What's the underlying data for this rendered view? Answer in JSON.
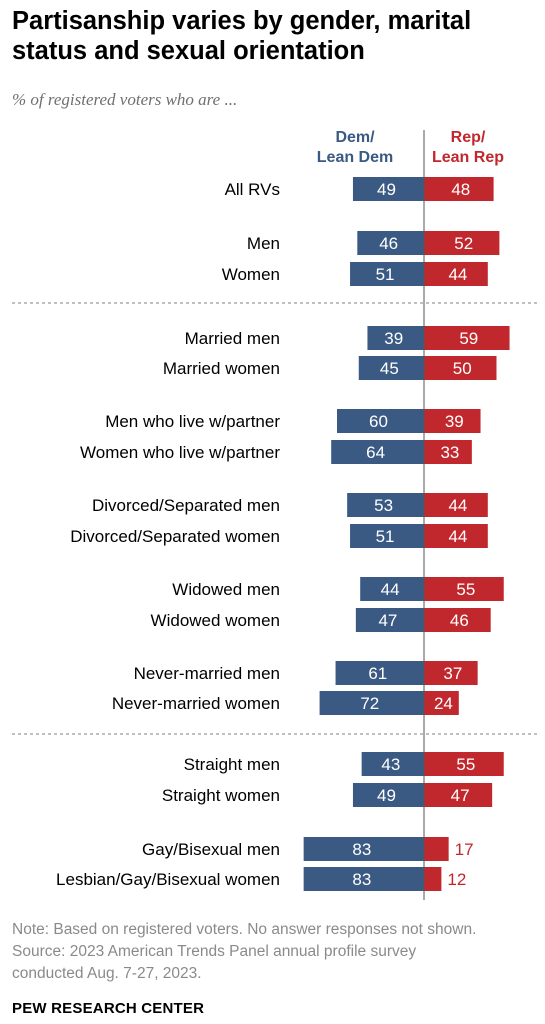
{
  "header": {
    "title": "Partisanship varies by gender, marital status and sexual orientation",
    "subtitle": "% of registered voters who are ..."
  },
  "columns": {
    "dem_line1": "Dem/",
    "dem_line2": "Lean Dem",
    "rep_line1": "Rep/",
    "rep_line2": "Lean Rep"
  },
  "colors": {
    "dem": "#3a5a83",
    "rep": "#c1282d",
    "bar_label": "#ffffff",
    "outside_label": "#c1282d"
  },
  "chart_data": {
    "type": "bar",
    "orientation": "horizontal diverging",
    "categories": [
      "All RVs",
      "Men",
      "Women",
      "Married men",
      "Married women",
      "Men who live w/partner",
      "Women who live w/partner",
      "Divorced/Separated men",
      "Divorced/Separated women",
      "Widowed men",
      "Widowed women",
      "Never-married men",
      "Never-married women",
      "Straight men",
      "Straight women",
      "Gay/Bisexual men",
      "Lesbian/Gay/Bisexual women"
    ],
    "series": [
      {
        "name": "Dem/Lean Dem",
        "values": [
          49,
          46,
          51,
          39,
          45,
          60,
          64,
          53,
          51,
          44,
          47,
          61,
          72,
          43,
          49,
          83,
          83
        ]
      },
      {
        "name": "Rep/Lean Rep",
        "values": [
          48,
          52,
          44,
          59,
          50,
          39,
          33,
          44,
          44,
          55,
          46,
          37,
          24,
          55,
          47,
          17,
          12
        ]
      }
    ],
    "groups": [
      [
        0
      ],
      [
        1,
        2
      ],
      [
        3,
        4
      ],
      [
        5,
        6
      ],
      [
        7,
        8
      ],
      [
        9,
        10
      ],
      [
        11,
        12
      ],
      [
        13,
        14
      ],
      [
        15,
        16
      ]
    ],
    "section_dividers_after_groups": [
      1,
      6
    ]
  },
  "note": {
    "line1": "Note: Based on registered voters. No answer responses not shown.",
    "line2": "Source: 2023 American Trends Panel annual profile survey",
    "line3": "conducted Aug. 7-27, 2023."
  },
  "footer": {
    "source": "PEW RESEARCH CENTER"
  }
}
